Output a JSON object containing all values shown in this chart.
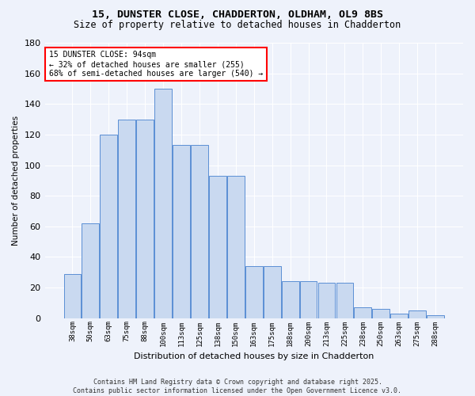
{
  "title1": "15, DUNSTER CLOSE, CHADDERTON, OLDHAM, OL9 8BS",
  "title2": "Size of property relative to detached houses in Chadderton",
  "xlabel": "Distribution of detached houses by size in Chadderton",
  "ylabel": "Number of detached properties",
  "categories": [
    "38sqm",
    "50sqm",
    "63sqm",
    "75sqm",
    "88sqm",
    "100sqm",
    "113sqm",
    "125sqm",
    "138sqm",
    "150sqm",
    "163sqm",
    "175sqm",
    "188sqm",
    "200sqm",
    "213sqm",
    "225sqm",
    "238sqm",
    "250sqm",
    "263sqm",
    "275sqm",
    "288sqm"
  ],
  "bar_values": [
    29,
    62,
    120,
    130,
    130,
    150,
    113,
    113,
    93,
    93,
    34,
    34,
    24,
    24,
    23,
    23,
    7,
    6,
    3,
    5,
    2
  ],
  "bar_color_fill": "#c9d9f0",
  "bar_color_edge": "#5b8fd4",
  "annotation_text": "15 DUNSTER CLOSE: 94sqm\n← 32% of detached houses are smaller (255)\n68% of semi-detached houses are larger (540) →",
  "annotation_box_facecolor": "white",
  "annotation_box_edgecolor": "red",
  "footer1": "Contains HM Land Registry data © Crown copyright and database right 2025.",
  "footer2": "Contains public sector information licensed under the Open Government Licence v3.0.",
  "bg_color": "#eef2fb",
  "ylim": [
    0,
    180
  ],
  "yticks": [
    0,
    20,
    40,
    60,
    80,
    100,
    120,
    140,
    160,
    180
  ]
}
